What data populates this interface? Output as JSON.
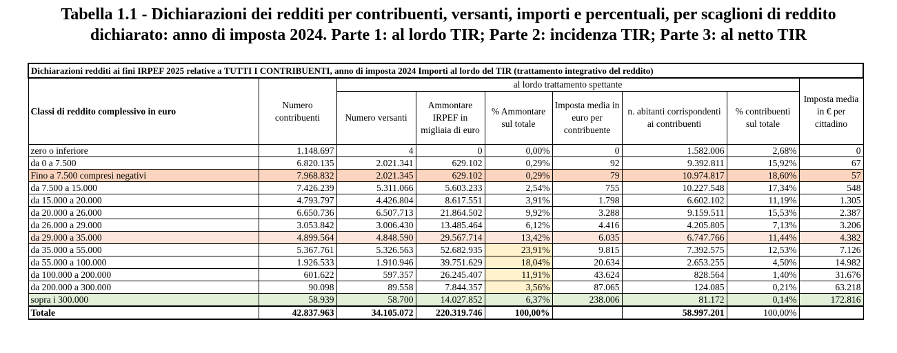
{
  "title": {
    "line1": "Tabella 1.1 - Dichiarazioni dei redditi per contribuenti, versanti, importi e percentuali, per scaglioni di reddito",
    "line2": "dichiarato: anno di imposta 2024. Parte 1: al lordo TIR; Parte 2: incidenza TIR; Parte 3: al netto TIR"
  },
  "table": {
    "caption": "Dichiarazioni redditi ai fini IRPEF 2025 relative a TUTTI I CONTRIBUENTI, anno di imposta 2024 Importi al lordo del TIR (trattamento integrativo del reddito)",
    "group_header": "al lordo trattamento spettante",
    "headers": [
      "Classi di reddito complessivo in euro",
      "Numero contribuenti",
      "Numero versanti",
      "Ammontare IRPEF in migliaia di euro",
      "% Ammontare sul totale",
      "Imposta media in euro per contribuente",
      "n. abitanti corrispondenti ai contribuenti",
      "% contribuenti sul totale",
      "Imposta media in € per cittadino"
    ],
    "rows": [
      [
        "zero o inferiore",
        "1.148.697",
        "4",
        "0",
        "0,00%",
        "0",
        "1.582.006",
        "2,68%",
        "0"
      ],
      [
        "da 0 a 7.500",
        "6.820.135",
        "2.021.341",
        "629.102",
        "0,29%",
        "92",
        "9.392.811",
        "15,92%",
        "67"
      ],
      [
        "Fino a 7.500 compresi negativi",
        "7.968.832",
        "2.021.345",
        "629.102",
        "0,29%",
        "79",
        "10.974.817",
        "18,60%",
        "57"
      ],
      [
        "da 7.500 a 15.000",
        "7.426.239",
        "5.311.066",
        "5.603.233",
        "2,54%",
        "755",
        "10.227.548",
        "17,34%",
        "548"
      ],
      [
        "da 15.000 a 20.000",
        "4.793.797",
        "4.426.804",
        "8.617.551",
        "3,91%",
        "1.798",
        "6.602.102",
        "11,19%",
        "1.305"
      ],
      [
        "da 20.000 a 26.000",
        "6.650.736",
        "6.507.713",
        "21.864.502",
        "9,92%",
        "3.288",
        "9.159.511",
        "15,53%",
        "2.387"
      ],
      [
        "da 26.000 a 29.000",
        "3.053.842",
        "3.006.430",
        "13.485.464",
        "6,12%",
        "4.416",
        "4.205.805",
        "7,13%",
        "3.206"
      ],
      [
        "da 29.000 a 35.000",
        "4.899.564",
        "4.848.590",
        "29.567.714",
        "13,42%",
        "6.035",
        "6.747.766",
        "11,44%",
        "4.382"
      ],
      [
        "da 35.000 a 55.000",
        "5.367.761",
        "5.326.563",
        "52.682.935",
        "23,91%",
        "9.815",
        "7.392.575",
        "12,53%",
        "7.126"
      ],
      [
        "da 55.000 a 100.000",
        "1.926.533",
        "1.910.946",
        "39.751.629",
        "18,04%",
        "20.634",
        "2.653.255",
        "4,50%",
        "14.982"
      ],
      [
        "da 100.000 a 200.000",
        "601.622",
        "597.357",
        "26.245.407",
        "11,91%",
        "43.624",
        "828.564",
        "1,40%",
        "31.676"
      ],
      [
        "da 200.000 a 300.000",
        "90.098",
        "89.558",
        "7.844.357",
        "3,56%",
        "87.065",
        "124.085",
        "0,21%",
        "63.218"
      ],
      [
        "sopra i 300.000",
        "58.939",
        "58.700",
        "14.027.852",
        "6,37%",
        "238.006",
        "81.172",
        "0,14%",
        "172.816"
      ]
    ],
    "total": [
      "Totale",
      "42.837.963",
      "34.105.072",
      "220.319.746",
      "100,00%",
      "",
      "58.997.201",
      "100,00%",
      ""
    ]
  },
  "colors": {
    "peach_row": "#fbd5bf",
    "light_peach_row": "#fde6dc",
    "green_row": "#e2efd9",
    "yellow_highlight": "#fff2cc"
  }
}
